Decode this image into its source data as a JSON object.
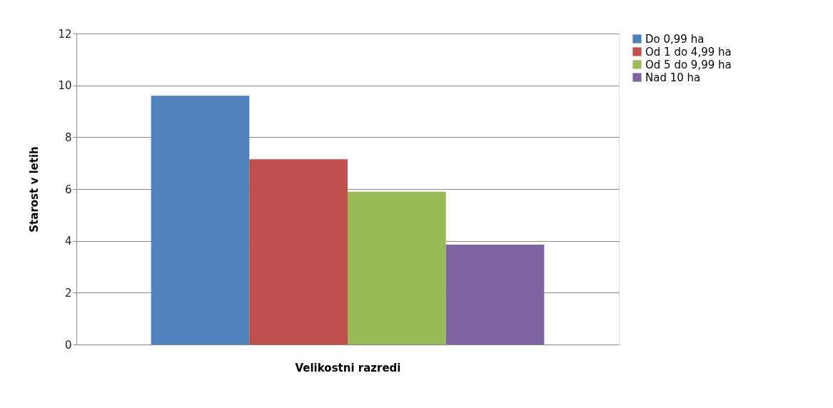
{
  "chart_data": {
    "type": "bar",
    "ylabel": "Starost v letih",
    "xlabel": "Velikostni razredi",
    "categories": [
      null
    ],
    "series": [
      {
        "name": "Do 0,99 ha",
        "color": "#4f81bd",
        "values": [
          9.6
        ]
      },
      {
        "name": "Od 1 do 4,99 ha",
        "color": "#c0504d",
        "values": [
          7.15
        ]
      },
      {
        "name": "Od 5 do 9,99 ha",
        "color": "#9bbb59",
        "values": [
          5.9
        ]
      },
      {
        "name": "Nad 10 ha",
        "color": "#8064a2",
        "values": [
          3.85
        ]
      }
    ],
    "ylim": [
      0,
      12
    ],
    "yticks": [
      0,
      2,
      4,
      6,
      8,
      10,
      12
    ],
    "grid": "y",
    "legend": "right"
  }
}
